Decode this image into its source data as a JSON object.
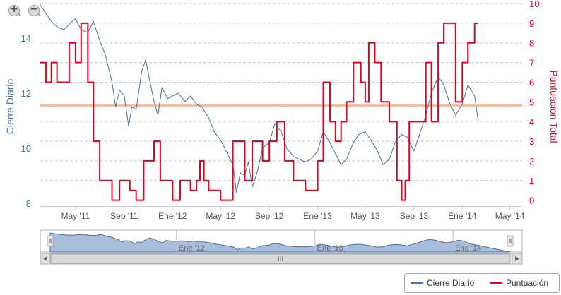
{
  "chart_data": {
    "type": "line",
    "title": "",
    "left_axis": {
      "label": "Cierre Diario",
      "ticks": [
        8,
        10,
        12,
        14
      ],
      "range": [
        7.9,
        15.25
      ],
      "color": "#4572a7"
    },
    "right_axis": {
      "label": "Puntuacion Total",
      "ticks": [
        0,
        1,
        2,
        3,
        4,
        5,
        6,
        7,
        8,
        9,
        10
      ],
      "range": [
        -0.3,
        10
      ],
      "color": "#e8001c"
    },
    "x_axis": {
      "ticks": [
        "May '11",
        "Sep '11",
        "Ene '12",
        "May '12",
        "Sep '12",
        "Ene '13",
        "May '13",
        "Sep '13",
        "Ene '14",
        "May '14"
      ],
      "tick_dates": [
        "2011-05-01",
        "2011-09-01",
        "2012-01-01",
        "2012-05-01",
        "2012-09-01",
        "2013-01-01",
        "2013-05-01",
        "2013-09-01",
        "2014-01-01",
        "2014-05-01"
      ],
      "range": [
        "2011-02-01",
        "2014-06-01"
      ]
    },
    "plot_line": {
      "axis": "left",
      "value": 11.55,
      "color": "#f4b490"
    },
    "grid": true,
    "legend_position": "bottom-right",
    "series": [
      {
        "name": "Cierre Diario",
        "axis": "left",
        "color": "#4572a7",
        "points": [
          [
            "2011-02-01",
            15.2
          ],
          [
            "2011-02-15",
            14.9
          ],
          [
            "2011-03-01",
            14.6
          ],
          [
            "2011-03-15",
            14.4
          ],
          [
            "2011-04-01",
            14.3
          ],
          [
            "2011-04-15",
            14.5
          ],
          [
            "2011-05-01",
            14.7
          ],
          [
            "2011-05-15",
            14.3
          ],
          [
            "2011-06-01",
            14.2
          ],
          [
            "2011-06-15",
            14.6
          ],
          [
            "2011-07-01",
            13.9
          ],
          [
            "2011-07-15",
            13.4
          ],
          [
            "2011-08-01",
            12.4
          ],
          [
            "2011-08-10",
            11.5
          ],
          [
            "2011-08-20",
            12.1
          ],
          [
            "2011-09-01",
            11.9
          ],
          [
            "2011-09-12",
            10.8
          ],
          [
            "2011-09-20",
            11.5
          ],
          [
            "2011-10-01",
            11.4
          ],
          [
            "2011-10-15",
            12.8
          ],
          [
            "2011-10-25",
            13.2
          ],
          [
            "2011-11-05",
            12.4
          ],
          [
            "2011-11-15",
            11.7
          ],
          [
            "2011-11-25",
            11.2
          ],
          [
            "2011-12-05",
            12.2
          ],
          [
            "2011-12-20",
            11.8
          ],
          [
            "2012-01-01",
            11.9
          ],
          [
            "2012-01-15",
            12.0
          ],
          [
            "2012-02-01",
            11.7
          ],
          [
            "2012-02-15",
            11.9
          ],
          [
            "2012-03-01",
            11.6
          ],
          [
            "2012-03-15",
            11.5
          ],
          [
            "2012-04-01",
            11.1
          ],
          [
            "2012-04-15",
            10.6
          ],
          [
            "2012-05-01",
            10.3
          ],
          [
            "2012-05-15",
            9.9
          ],
          [
            "2012-06-01",
            9.4
          ],
          [
            "2012-06-10",
            8.4
          ],
          [
            "2012-06-20",
            9.1
          ],
          [
            "2012-07-01",
            9.0
          ],
          [
            "2012-07-10",
            9.5
          ],
          [
            "2012-07-20",
            8.6
          ],
          [
            "2012-08-01",
            9.1
          ],
          [
            "2012-08-15",
            10.0
          ],
          [
            "2012-09-01",
            10.2
          ],
          [
            "2012-09-15",
            10.9
          ],
          [
            "2012-10-01",
            10.6
          ],
          [
            "2012-10-15",
            10.0
          ],
          [
            "2012-11-01",
            9.7
          ],
          [
            "2012-11-15",
            9.6
          ],
          [
            "2012-12-01",
            9.5
          ],
          [
            "2012-12-15",
            9.6
          ],
          [
            "2013-01-01",
            9.9
          ],
          [
            "2013-01-15",
            10.6
          ],
          [
            "2013-02-01",
            10.2
          ],
          [
            "2013-02-15",
            9.8
          ],
          [
            "2013-03-01",
            9.4
          ],
          [
            "2013-03-15",
            9.6
          ],
          [
            "2013-04-01",
            10.2
          ],
          [
            "2013-04-15",
            10.5
          ],
          [
            "2013-05-01",
            10.6
          ],
          [
            "2013-05-15",
            10.3
          ],
          [
            "2013-06-01",
            9.9
          ],
          [
            "2013-06-15",
            9.4
          ],
          [
            "2013-07-01",
            9.6
          ],
          [
            "2013-07-15",
            10.2
          ],
          [
            "2013-08-01",
            10.5
          ],
          [
            "2013-08-15",
            10.4
          ],
          [
            "2013-09-01",
            9.9
          ],
          [
            "2013-09-15",
            10.5
          ],
          [
            "2013-10-01",
            11.2
          ],
          [
            "2013-10-15",
            12.0
          ],
          [
            "2013-11-01",
            12.6
          ],
          [
            "2013-11-15",
            12.3
          ],
          [
            "2013-12-01",
            11.6
          ],
          [
            "2013-12-15",
            11.2
          ],
          [
            "2014-01-01",
            11.6
          ],
          [
            "2014-01-15",
            12.3
          ],
          [
            "2014-02-01",
            11.9
          ],
          [
            "2014-02-10",
            11.0
          ]
        ]
      },
      {
        "name": "Puntuación",
        "axis": "right",
        "color": "#e8001c",
        "step": true,
        "points": [
          [
            "2011-02-01",
            7
          ],
          [
            "2011-02-15",
            6
          ],
          [
            "2011-03-01",
            7
          ],
          [
            "2011-03-15",
            6
          ],
          [
            "2011-04-15",
            8
          ],
          [
            "2011-05-01",
            7
          ],
          [
            "2011-05-15",
            9
          ],
          [
            "2011-06-01",
            6
          ],
          [
            "2011-06-15",
            3
          ],
          [
            "2011-07-01",
            1
          ],
          [
            "2011-08-01",
            0
          ],
          [
            "2011-08-20",
            1
          ],
          [
            "2011-09-15",
            0.5
          ],
          [
            "2011-10-01",
            0
          ],
          [
            "2011-10-20",
            2
          ],
          [
            "2011-11-15",
            3
          ],
          [
            "2011-12-01",
            1
          ],
          [
            "2012-01-01",
            0
          ],
          [
            "2012-01-20",
            1
          ],
          [
            "2012-02-15",
            0.5
          ],
          [
            "2012-03-01",
            1
          ],
          [
            "2012-03-10",
            2
          ],
          [
            "2012-03-20",
            1
          ],
          [
            "2012-04-01",
            0.5
          ],
          [
            "2012-05-01",
            0
          ],
          [
            "2012-06-01",
            3
          ],
          [
            "2012-07-01",
            1
          ],
          [
            "2012-07-20",
            3
          ],
          [
            "2012-08-15",
            2
          ],
          [
            "2012-09-01",
            3
          ],
          [
            "2012-09-20",
            4
          ],
          [
            "2012-10-10",
            2
          ],
          [
            "2012-11-01",
            1
          ],
          [
            "2012-12-01",
            0.5
          ],
          [
            "2013-01-01",
            2
          ],
          [
            "2013-01-15",
            6
          ],
          [
            "2013-02-01",
            4
          ],
          [
            "2013-02-15",
            3
          ],
          [
            "2013-03-01",
            4
          ],
          [
            "2013-03-15",
            5
          ],
          [
            "2013-04-01",
            7
          ],
          [
            "2013-04-20",
            6
          ],
          [
            "2013-05-01",
            5
          ],
          [
            "2013-05-10",
            8
          ],
          [
            "2013-05-25",
            7
          ],
          [
            "2013-06-10",
            5
          ],
          [
            "2013-07-01",
            4
          ],
          [
            "2013-07-20",
            1
          ],
          [
            "2013-08-01",
            0
          ],
          [
            "2013-08-10",
            1
          ],
          [
            "2013-08-20",
            4
          ],
          [
            "2013-09-10",
            4
          ],
          [
            "2013-10-01",
            7
          ],
          [
            "2013-10-15",
            4
          ],
          [
            "2013-11-01",
            8
          ],
          [
            "2013-11-15",
            9
          ],
          [
            "2013-12-15",
            5
          ],
          [
            "2014-01-01",
            7
          ],
          [
            "2014-01-15",
            8
          ],
          [
            "2014-02-01",
            9
          ],
          [
            "2014-02-10",
            9
          ]
        ]
      }
    ]
  },
  "navigator": {
    "ticks": [
      "Ene '12",
      "Ene '13",
      "Ene '14"
    ],
    "tick_dates": [
      "2012-01-01",
      "2013-01-01",
      "2014-01-01"
    ],
    "scrollbar_grip": "III"
  },
  "legend": {
    "items": [
      {
        "label": "Cierre Diario",
        "color": "#4572a7"
      },
      {
        "label": "Puntuación",
        "color": "#e8001c"
      }
    ]
  },
  "controls": {
    "zoom_in_icon": "+",
    "zoom_out_icon": "−"
  }
}
